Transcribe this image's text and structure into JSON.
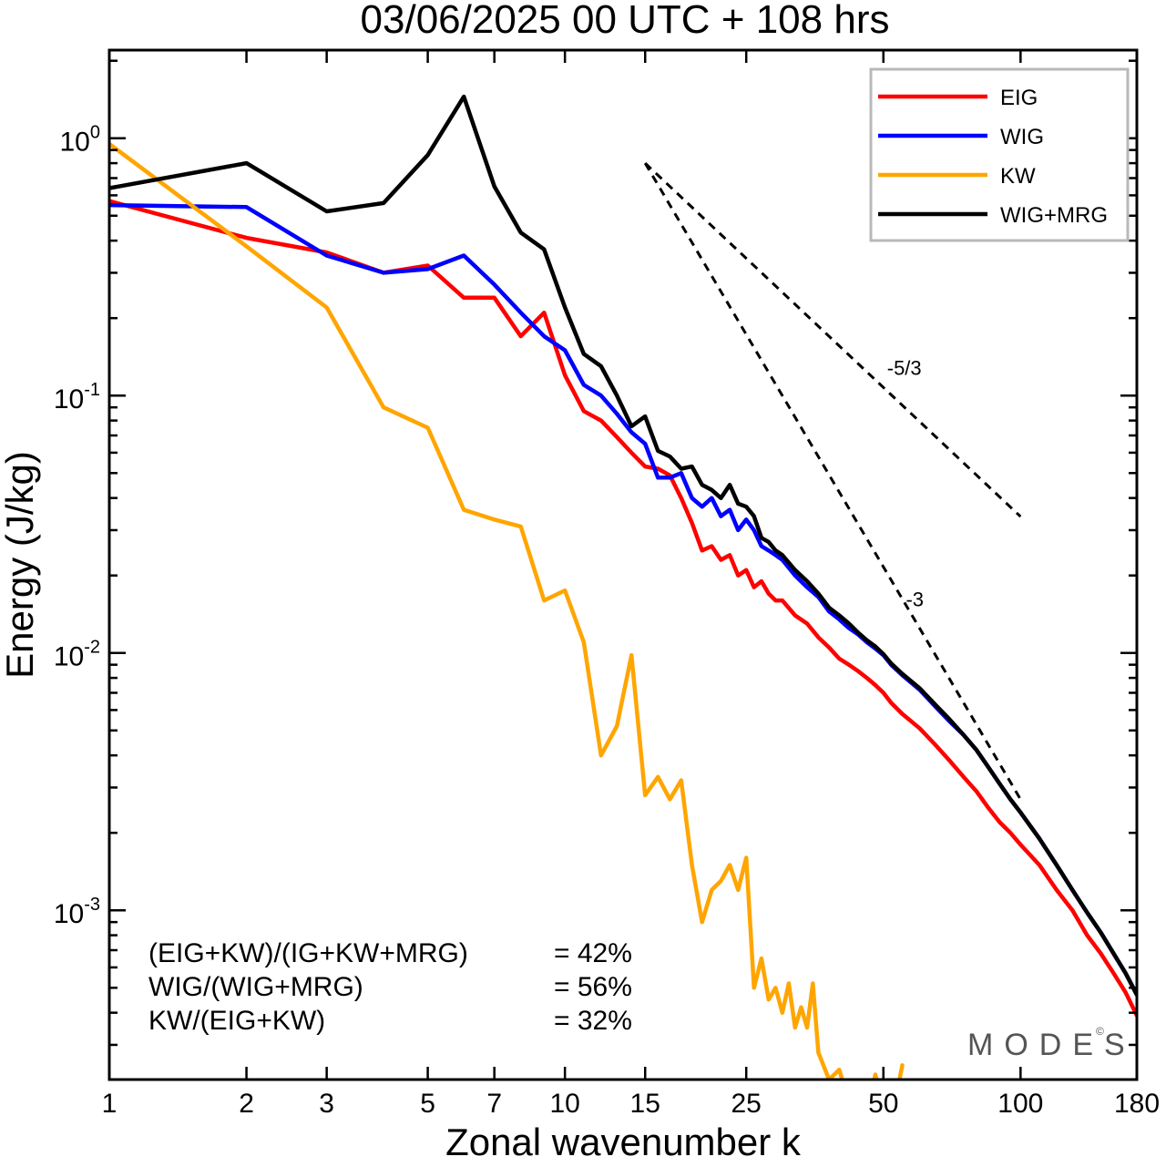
{
  "chart_data": {
    "type": "line",
    "title": "03/06/2025  00 UTC  + 108 hrs",
    "xlabel": "Zonal wavenumber k",
    "ylabel": "Energy (J/kg)",
    "xscale": "log",
    "yscale": "log",
    "xlim": [
      1,
      180
    ],
    "ylim": [
      0.00022,
      2.2
    ],
    "xticks": [
      1,
      2,
      3,
      5,
      7,
      10,
      15,
      25,
      50,
      100,
      180
    ],
    "xtick_labels": [
      "1",
      "2",
      "3",
      "5",
      "7",
      "10",
      "15",
      "25",
      "50",
      "100",
      "180"
    ],
    "yticks": [
      {
        "value": 1,
        "base": "10",
        "exp": "0"
      },
      {
        "value": 0.1,
        "base": "10",
        "exp": "-1"
      },
      {
        "value": 0.01,
        "base": "10",
        "exp": "-2"
      },
      {
        "value": 0.001,
        "base": "10",
        "exp": "-3"
      }
    ],
    "grid": false,
    "legend_position": "top-right",
    "series": [
      {
        "name": "EIG",
        "color": "#ff0000",
        "x": [
          1,
          2,
          3,
          4,
          5,
          6,
          7,
          8,
          9,
          10,
          11,
          12,
          13,
          14,
          15,
          16,
          17,
          18,
          19,
          20,
          21,
          22,
          23,
          24,
          25,
          26,
          27,
          28,
          29,
          30,
          32,
          34,
          36,
          38,
          40,
          42,
          44,
          46,
          48,
          50,
          52,
          55,
          60,
          65,
          70,
          75,
          80,
          85,
          90,
          95,
          100,
          110,
          120,
          130,
          140,
          150,
          160,
          170,
          180
        ],
        "y": [
          0.57,
          0.41,
          0.36,
          0.3,
          0.32,
          0.24,
          0.24,
          0.17,
          0.21,
          0.12,
          0.087,
          0.08,
          0.069,
          0.06,
          0.053,
          0.052,
          0.049,
          0.04,
          0.032,
          0.025,
          0.026,
          0.023,
          0.024,
          0.02,
          0.021,
          0.018,
          0.019,
          0.017,
          0.016,
          0.016,
          0.014,
          0.013,
          0.0115,
          0.0105,
          0.0095,
          0.009,
          0.0085,
          0.008,
          0.0075,
          0.007,
          0.0064,
          0.0058,
          0.0051,
          0.0044,
          0.0038,
          0.0033,
          0.0029,
          0.0025,
          0.0022,
          0.002,
          0.0018,
          0.0015,
          0.0012,
          0.001,
          0.0008,
          0.00068,
          0.00057,
          0.00048,
          0.00039
        ]
      },
      {
        "name": "WIG",
        "color": "#0000ff",
        "x": [
          1,
          2,
          3,
          4,
          5,
          6,
          7,
          8,
          9,
          10,
          11,
          12,
          13,
          14,
          15,
          16,
          17,
          18,
          19,
          20,
          21,
          22,
          23,
          24,
          25,
          26,
          27,
          28,
          29,
          30,
          32,
          34,
          36,
          38,
          40,
          42,
          44,
          46,
          48,
          50,
          52,
          55,
          60,
          65,
          70,
          75,
          80,
          85,
          90,
          95,
          100,
          110,
          120,
          130,
          140,
          150,
          160,
          170,
          180
        ],
        "y": [
          0.55,
          0.54,
          0.35,
          0.3,
          0.31,
          0.35,
          0.27,
          0.21,
          0.17,
          0.15,
          0.11,
          0.1,
          0.085,
          0.072,
          0.065,
          0.048,
          0.048,
          0.05,
          0.04,
          0.037,
          0.04,
          0.034,
          0.036,
          0.03,
          0.033,
          0.03,
          0.026,
          0.025,
          0.024,
          0.023,
          0.02,
          0.018,
          0.0165,
          0.0145,
          0.0135,
          0.0125,
          0.0118,
          0.011,
          0.0104,
          0.0098,
          0.009,
          0.0082,
          0.0072,
          0.0062,
          0.0054,
          0.0048,
          0.0042,
          0.0036,
          0.0031,
          0.0027,
          0.0024,
          0.0019,
          0.0015,
          0.0012,
          0.00098,
          0.00082,
          0.00068,
          0.00057,
          0.00047
        ]
      },
      {
        "name": "KW",
        "color": "#ffa500",
        "x": [
          1,
          2,
          3,
          4,
          5,
          6,
          7,
          8,
          9,
          10,
          11,
          12,
          13,
          14,
          15,
          16,
          17,
          18,
          19,
          20,
          21,
          22,
          23,
          24,
          25,
          26,
          27,
          28,
          29,
          30,
          31,
          32,
          33,
          34,
          35,
          36,
          38,
          40,
          42,
          44,
          46,
          48,
          50,
          52,
          55
        ],
        "y": [
          0.95,
          0.38,
          0.22,
          0.09,
          0.075,
          0.036,
          0.033,
          0.031,
          0.016,
          0.0175,
          0.011,
          0.004,
          0.0052,
          0.0098,
          0.0028,
          0.0033,
          0.0027,
          0.0032,
          0.0015,
          0.0009,
          0.0012,
          0.0013,
          0.0015,
          0.0012,
          0.0016,
          0.0005,
          0.00065,
          0.00045,
          0.0005,
          0.0004,
          0.00052,
          0.00035,
          0.00042,
          0.00035,
          0.00052,
          0.00028,
          0.00022,
          0.00024,
          0.00018,
          0.0002,
          0.00016,
          0.00023,
          0.00017,
          0.00015,
          0.00025
        ]
      },
      {
        "name": "WIG+MRG",
        "color": "#000000",
        "x": [
          1,
          2,
          3,
          4,
          5,
          6,
          7,
          8,
          9,
          10,
          11,
          12,
          13,
          14,
          15,
          16,
          17,
          18,
          19,
          20,
          21,
          22,
          23,
          24,
          25,
          26,
          27,
          28,
          29,
          30,
          32,
          34,
          36,
          38,
          40,
          42,
          44,
          46,
          48,
          50,
          52,
          55,
          60,
          65,
          70,
          75,
          80,
          85,
          90,
          95,
          100,
          110,
          120,
          130,
          140,
          150,
          160,
          170,
          180
        ],
        "y": [
          0.64,
          0.8,
          0.52,
          0.56,
          0.86,
          1.45,
          0.65,
          0.43,
          0.37,
          0.22,
          0.145,
          0.13,
          0.1,
          0.076,
          0.083,
          0.061,
          0.058,
          0.052,
          0.053,
          0.045,
          0.043,
          0.04,
          0.045,
          0.038,
          0.037,
          0.034,
          0.028,
          0.027,
          0.025,
          0.024,
          0.021,
          0.019,
          0.017,
          0.015,
          0.014,
          0.013,
          0.012,
          0.0112,
          0.0106,
          0.0099,
          0.0091,
          0.0083,
          0.0073,
          0.0063,
          0.0055,
          0.0048,
          0.0042,
          0.0036,
          0.0031,
          0.0027,
          0.0024,
          0.0019,
          0.0015,
          0.0012,
          0.00098,
          0.00082,
          0.00068,
          0.00057,
          0.00047
        ]
      }
    ],
    "reference_lines": [
      {
        "label": "-5/3",
        "slope": -1.6667,
        "x0": 15,
        "y0": 0.8,
        "x1": 100
      },
      {
        "label": "-3",
        "slope": -3,
        "x0": 15,
        "y0": 0.8,
        "x1": 100
      }
    ],
    "annotations": [
      {
        "label": "(EIG+KW)/(IG+KW+MRG)",
        "value": "= 42%"
      },
      {
        "label": "WIG/(WIG+MRG)",
        "value": "= 56%"
      },
      {
        "label": "KW/(EIG+KW)",
        "value": "= 32%"
      }
    ],
    "watermark": "MODES",
    "watermark_mark": "©"
  }
}
